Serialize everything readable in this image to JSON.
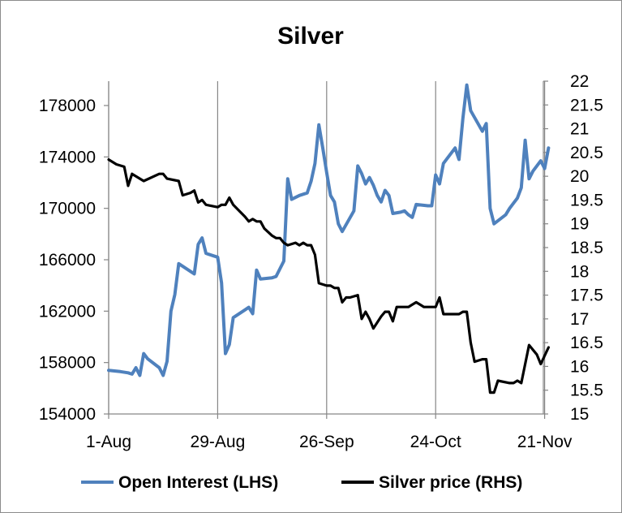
{
  "chart_data": {
    "type": "line",
    "title": "Silver",
    "x_ticks": [
      "1-Aug",
      "29-Aug",
      "26-Sep",
      "24-Oct",
      "21-Nov"
    ],
    "y_left": {
      "min": 154000,
      "max": 178000,
      "ticks": [
        "154000",
        "158000",
        "162000",
        "166000",
        "170000",
        "174000",
        "178000"
      ]
    },
    "y_right": {
      "min": 15,
      "max": 22,
      "ticks": [
        "15",
        "15.5",
        "16",
        "16.5",
        "17",
        "17.5",
        "18",
        "18.5",
        "19",
        "19.5",
        "20",
        "20.5",
        "21",
        "21.5",
        "22"
      ]
    },
    "legend_position": "bottom",
    "series": [
      {
        "name": "Open Interest (LHS)",
        "axis": "left",
        "color": "#4f81bd",
        "points": [
          [
            0,
            157400
          ],
          [
            3,
            157300
          ],
          [
            5,
            157200
          ],
          [
            6,
            157100
          ],
          [
            7,
            157600
          ],
          [
            8,
            157000
          ],
          [
            9,
            158700
          ],
          [
            10,
            158300
          ],
          [
            13,
            157600
          ],
          [
            14,
            157000
          ],
          [
            15,
            158100
          ],
          [
            16,
            162000
          ],
          [
            17,
            163300
          ],
          [
            18,
            165700
          ],
          [
            21,
            165100
          ],
          [
            22,
            164900
          ],
          [
            23,
            167200
          ],
          [
            24,
            167700
          ],
          [
            25,
            166500
          ],
          [
            27,
            166300
          ],
          [
            28,
            166200
          ],
          [
            29,
            164200
          ],
          [
            30,
            158700
          ],
          [
            31,
            159400
          ],
          [
            32,
            161500
          ],
          [
            35,
            162100
          ],
          [
            36,
            162300
          ],
          [
            37,
            161800
          ],
          [
            38,
            165200
          ],
          [
            39,
            164500
          ],
          [
            42,
            164600
          ],
          [
            43,
            164700
          ],
          [
            45,
            165900
          ],
          [
            46,
            172300
          ],
          [
            47,
            170700
          ],
          [
            49,
            171000
          ],
          [
            51,
            171200
          ],
          [
            52,
            172100
          ],
          [
            53,
            173500
          ],
          [
            54,
            176500
          ],
          [
            55,
            174700
          ],
          [
            56,
            172800
          ],
          [
            57,
            171000
          ],
          [
            58,
            170500
          ],
          [
            59,
            168800
          ],
          [
            60,
            168200
          ],
          [
            63,
            169800
          ],
          [
            64,
            173300
          ],
          [
            65,
            172700
          ],
          [
            66,
            171900
          ],
          [
            67,
            172400
          ],
          [
            68,
            171800
          ],
          [
            69,
            171000
          ],
          [
            70,
            170500
          ],
          [
            71,
            171400
          ],
          [
            72,
            171000
          ],
          [
            73,
            169600
          ],
          [
            75,
            169700
          ],
          [
            76,
            169800
          ],
          [
            77,
            169500
          ],
          [
            78,
            169300
          ],
          [
            79,
            170300
          ],
          [
            82,
            170200
          ],
          [
            83,
            170200
          ],
          [
            84,
            172600
          ],
          [
            85,
            171900
          ],
          [
            86,
            173500
          ],
          [
            89,
            174700
          ],
          [
            90,
            173800
          ],
          [
            91,
            177000
          ],
          [
            92,
            179600
          ],
          [
            93,
            177600
          ],
          [
            96,
            176000
          ],
          [
            97,
            176600
          ],
          [
            98,
            170000
          ],
          [
            99,
            168800
          ],
          [
            102,
            169500
          ],
          [
            103,
            170000
          ],
          [
            104,
            170400
          ],
          [
            105,
            170800
          ],
          [
            106,
            171600
          ],
          [
            107,
            175300
          ],
          [
            108,
            172300
          ],
          [
            109,
            172900
          ],
          [
            110,
            173300
          ],
          [
            111,
            173700
          ],
          [
            112,
            173100
          ],
          [
            113,
            174700
          ]
        ]
      },
      {
        "name": "Silver price (RHS)",
        "axis": "right",
        "color": "#000000",
        "points": [
          [
            0,
            20.35
          ],
          [
            2,
            20.25
          ],
          [
            4,
            20.2
          ],
          [
            5,
            19.8
          ],
          [
            6,
            20.05
          ],
          [
            9,
            19.9
          ],
          [
            13,
            20.05
          ],
          [
            14,
            20.05
          ],
          [
            15,
            19.95
          ],
          [
            18,
            19.9
          ],
          [
            19,
            19.6
          ],
          [
            21,
            19.65
          ],
          [
            22,
            19.7
          ],
          [
            23,
            19.45
          ],
          [
            24,
            19.5
          ],
          [
            25,
            19.4
          ],
          [
            28,
            19.35
          ],
          [
            29,
            19.4
          ],
          [
            30,
            19.4
          ],
          [
            31,
            19.55
          ],
          [
            32,
            19.4
          ],
          [
            35,
            19.15
          ],
          [
            36,
            19.05
          ],
          [
            37,
            19.1
          ],
          [
            38,
            19.05
          ],
          [
            39,
            19.05
          ],
          [
            40,
            18.9
          ],
          [
            42,
            18.75
          ],
          [
            43,
            18.7
          ],
          [
            44,
            18.7
          ],
          [
            45,
            18.6
          ],
          [
            46,
            18.55
          ],
          [
            48,
            18.6
          ],
          [
            49,
            18.55
          ],
          [
            50,
            18.6
          ],
          [
            51,
            18.55
          ],
          [
            52,
            18.55
          ],
          [
            53,
            18.35
          ],
          [
            54,
            17.75
          ],
          [
            56,
            17.7
          ],
          [
            57,
            17.7
          ],
          [
            58,
            17.65
          ],
          [
            59,
            17.65
          ],
          [
            60,
            17.35
          ],
          [
            61,
            17.45
          ],
          [
            62,
            17.45
          ],
          [
            64,
            17.5
          ],
          [
            65,
            17.0
          ],
          [
            66,
            17.15
          ],
          [
            67,
            17.0
          ],
          [
            68,
            16.8
          ],
          [
            70,
            17.05
          ],
          [
            71,
            17.15
          ],
          [
            72,
            17.15
          ],
          [
            73,
            16.95
          ],
          [
            74,
            17.25
          ],
          [
            77,
            17.25
          ],
          [
            78,
            17.3
          ],
          [
            79,
            17.35
          ],
          [
            80,
            17.3
          ],
          [
            81,
            17.25
          ],
          [
            82,
            17.25
          ],
          [
            84,
            17.25
          ],
          [
            85,
            17.45
          ],
          [
            86,
            17.1
          ],
          [
            88,
            17.1
          ],
          [
            90,
            17.1
          ],
          [
            91,
            17.15
          ],
          [
            92,
            17.15
          ],
          [
            93,
            16.5
          ],
          [
            94,
            16.1
          ],
          [
            96,
            16.15
          ],
          [
            97,
            16.15
          ],
          [
            98,
            15.45
          ],
          [
            99,
            15.45
          ],
          [
            100,
            15.7
          ],
          [
            103,
            15.65
          ],
          [
            104,
            15.65
          ],
          [
            105,
            15.7
          ],
          [
            106,
            15.65
          ],
          [
            108,
            16.45
          ],
          [
            110,
            16.25
          ],
          [
            111,
            16.05
          ],
          [
            113,
            16.4
          ]
        ]
      }
    ]
  }
}
